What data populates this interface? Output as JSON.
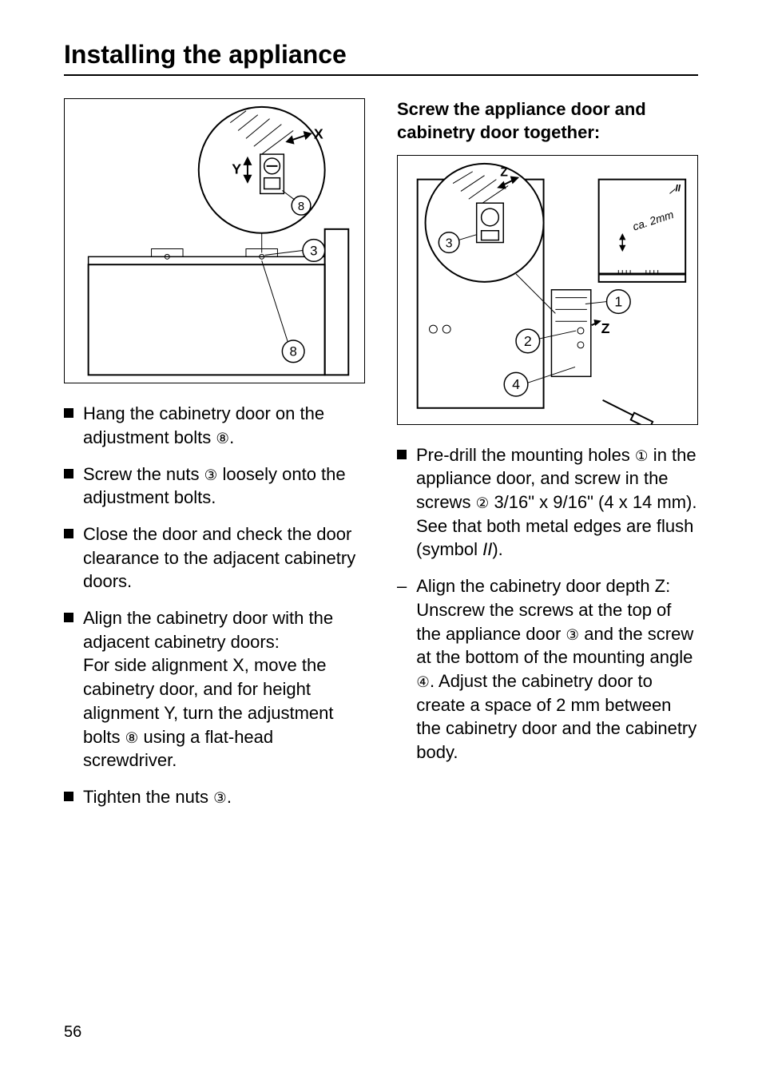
{
  "page": {
    "title": "Installing the appliance",
    "number": "56"
  },
  "left": {
    "items": [
      {
        "type": "sq",
        "html": "Hang the cabinetry door on the adjustment bolts <span class=\"circ-num\">⑧</span>."
      },
      {
        "type": "sq",
        "html": "Screw the nuts <span class=\"circ-num\">③</span> loosely onto the adjustment bolts."
      },
      {
        "type": "sq",
        "html": "Close the door and check the door clearance to the adjacent cabinetry doors."
      },
      {
        "type": "sq",
        "html": "Align the cabinetry door with the adjacent cabinetry doors:<br>For side alignment X, move the cabinetry door, and for height alignment Y, turn the adjustment bolts <span class=\"circ-num\">⑧</span> using a flat-head screwdriver."
      },
      {
        "type": "sq",
        "html": "Tighten the nuts <span class=\"circ-num\">③</span>."
      }
    ]
  },
  "right": {
    "subhead": "Screw the appliance door and cabinetry door  together:",
    "items": [
      {
        "type": "sq",
        "html": "Pre-drill the mounting holes <span class=\"circ-num\">①</span> in the appliance door, and screw in the screws <span class=\"circ-num\">②</span> 3/16\" x 9/16\" (4 x 14 mm). See that both metal edges are flush (symbol <span class=\"ital\">II</span>)."
      },
      {
        "type": "dash",
        "html": "Align the cabinetry door depth Z: Unscrew the screws at the top of the appliance door <span class=\"circ-num\">③</span> and the screw at the bottom of the mounting angle <span class=\"circ-num\">④</span>. Adjust the cabinetry door to create a space of 2 mm between the cabinetry door and the cabinetry body."
      }
    ]
  },
  "figures": {
    "left": {
      "labels": {
        "X": "X",
        "Y": "Y",
        "n3": "3",
        "n8a": "8",
        "n8b": "8"
      }
    },
    "right": {
      "labels": {
        "Z1": "Z",
        "Z2": "Z",
        "n1": "1",
        "n2": "2",
        "n3": "3",
        "n4": "4",
        "gap": "ca. 2mm",
        "II": "II"
      }
    }
  }
}
